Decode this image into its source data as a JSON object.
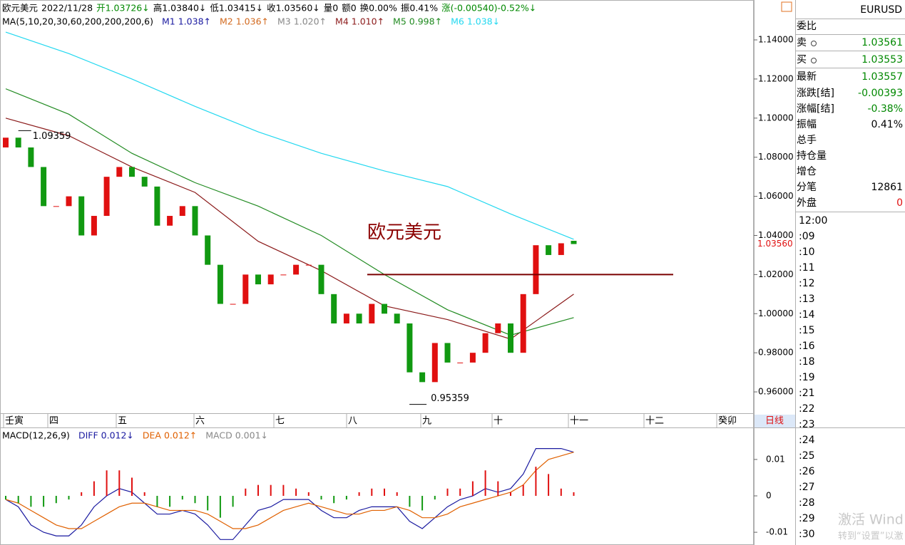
{
  "header": {
    "items": [
      {
        "text": "欧元美元",
        "color": "#000000"
      },
      {
        "text": "2022/11/28",
        "color": "#000000"
      },
      {
        "text": "开1.03726↓",
        "color": "#008800"
      },
      {
        "text": "高1.03840↓",
        "color": "#000000"
      },
      {
        "text": "低1.03415↓",
        "color": "#000000"
      },
      {
        "text": "收1.03560↓",
        "color": "#000000"
      },
      {
        "text": "量0",
        "color": "#000000"
      },
      {
        "text": "额0",
        "color": "#000000"
      },
      {
        "text": "换0.00%",
        "color": "#000000"
      },
      {
        "text": "振0.41%",
        "color": "#000000"
      },
      {
        "text": "涨(-0.00540)-0.52%↓",
        "color": "#008800"
      }
    ]
  },
  "chart_data": [
    {
      "type": "candlestick",
      "ma_title": "MA(5,10,20,30,60,200,200,200,6)",
      "open": [
        1.085,
        1.09,
        1.085,
        1.075,
        1.055,
        1.055,
        1.06,
        1.04,
        1.05,
        1.07,
        1.075,
        1.07,
        1.065,
        1.045,
        1.05,
        1.055,
        1.04,
        1.025,
        1.005,
        1.005,
        1.02,
        1.015,
        1.02,
        1.02,
        1.025,
        1.025,
        1.01,
        0.995,
        1.0,
        0.995,
        1.005,
        1.0,
        0.995,
        0.97,
        0.965,
        0.985,
        0.975,
        0.975,
        0.98,
        0.99,
        0.995,
        0.98,
        1.01,
        1.035,
        1.03,
        1.03726
      ],
      "close": [
        1.09,
        1.085,
        1.075,
        1.055,
        1.055,
        1.06,
        1.04,
        1.05,
        1.07,
        1.075,
        1.07,
        1.065,
        1.045,
        1.05,
        1.055,
        1.04,
        1.025,
        1.005,
        1.005,
        1.02,
        1.015,
        1.02,
        1.02,
        1.025,
        1.025,
        1.01,
        0.995,
        1.0,
        0.995,
        1.005,
        1.0,
        0.995,
        0.97,
        0.965,
        0.985,
        0.975,
        0.975,
        0.98,
        0.99,
        0.995,
        0.98,
        1.01,
        1.035,
        1.03,
        1.036,
        1.0356
      ],
      "up_color": "#e01010",
      "down_color": "#119911",
      "series": [
        {
          "name": "M1",
          "color": "#1a1aa0",
          "value_label": "1.038↑"
        },
        {
          "name": "M2",
          "color": "#d2691e",
          "value_label": "1.036↑"
        },
        {
          "name": "M3",
          "color": "#888888",
          "value_label": "1.020↑"
        },
        {
          "name": "M4",
          "color": "#8b1a1a",
          "value_label": "1.010↑",
          "x": [
            0,
            5,
            10,
            15,
            20,
            25,
            30,
            35,
            40,
            45
          ],
          "values": [
            1.1,
            1.091,
            1.075,
            1.062,
            1.037,
            1.022,
            1.004,
            0.997,
            0.987,
            1.01
          ]
        },
        {
          "name": "M5",
          "color": "#228b22",
          "value_label": "0.998↑",
          "x": [
            0,
            5,
            10,
            15,
            20,
            25,
            30,
            35,
            40,
            45
          ],
          "values": [
            1.115,
            1.102,
            1.082,
            1.067,
            1.055,
            1.04,
            1.02,
            1.002,
            0.989,
            0.998
          ]
        },
        {
          "name": "M6",
          "color": "#22d8f0",
          "value_label": "1.038↓",
          "x": [
            0,
            5,
            10,
            15,
            20,
            25,
            30,
            35,
            40,
            45
          ],
          "values": [
            1.144,
            1.133,
            1.12,
            1.106,
            1.093,
            1.082,
            1.073,
            1.065,
            1.051,
            1.038
          ]
        }
      ],
      "x_labels": [
        "壬寅",
        "四",
        "五",
        "六",
        "七",
        "八",
        "九",
        "十",
        "十一",
        "十二",
        "癸卯"
      ],
      "ylim": [
        0.9491,
        1.1604
      ],
      "yticks": [
        {
          "value": 1.14,
          "label": "1.14000"
        },
        {
          "value": 1.12,
          "label": "1.12000"
        },
        {
          "value": 1.1,
          "label": "1.10000"
        },
        {
          "value": 1.08,
          "label": "1.08000"
        },
        {
          "value": 1.06,
          "label": "1.06000"
        },
        {
          "value": 1.04,
          "label": "1.04000"
        },
        {
          "value": 1.02,
          "label": "1.02000"
        },
        {
          "value": 1.0,
          "label": "1.00000"
        },
        {
          "value": 0.98,
          "label": "0.98000"
        },
        {
          "value": 0.96,
          "label": "0.96000"
        }
      ],
      "last_price": {
        "value": 1.0356,
        "label": "1.03560"
      },
      "high_mark": {
        "value": 1.09359,
        "label": "1.09359"
      },
      "low_mark": {
        "value": 0.95359,
        "label": "0.95359"
      },
      "annotation": "欧元美元",
      "level_line": 1.02
    },
    {
      "type": "macd",
      "title": "MACD(12,26,9)",
      "series": [
        {
          "name": "DIFF",
          "color": "#1a1aa0",
          "value_label": "0.012↓",
          "values": [
            -0.001,
            -0.003,
            -0.008,
            -0.01,
            -0.011,
            -0.011,
            -0.008,
            -0.003,
            0.0,
            0.002,
            0.001,
            -0.002,
            -0.005,
            -0.005,
            -0.004,
            -0.005,
            -0.008,
            -0.012,
            -0.012,
            -0.008,
            -0.004,
            -0.003,
            -0.001,
            -0.001,
            -0.001,
            -0.004,
            -0.006,
            -0.006,
            -0.004,
            -0.003,
            -0.003,
            -0.003,
            -0.007,
            -0.009,
            -0.006,
            -0.003,
            -0.001,
            0.0,
            0.002,
            0.001,
            0.002,
            0.006,
            0.013,
            0.013,
            0.013,
            0.012
          ]
        },
        {
          "name": "DEA",
          "color": "#e06000",
          "value_label": "0.012↑",
          "values": [
            -0.001,
            -0.002,
            -0.004,
            -0.006,
            -0.008,
            -0.009,
            -0.009,
            -0.007,
            -0.005,
            -0.003,
            -0.002,
            -0.002,
            -0.003,
            -0.004,
            -0.004,
            -0.004,
            -0.005,
            -0.007,
            -0.009,
            -0.009,
            -0.008,
            -0.006,
            -0.004,
            -0.003,
            -0.002,
            -0.003,
            -0.004,
            -0.005,
            -0.005,
            -0.004,
            -0.004,
            -0.003,
            -0.004,
            -0.006,
            -0.006,
            -0.005,
            -0.003,
            -0.002,
            -0.001,
            0.0,
            0.001,
            0.003,
            0.007,
            0.01,
            0.011,
            0.012
          ]
        },
        {
          "name": "MACD",
          "color": "#888888",
          "value_label": "0.001↓",
          "values": [
            -0.001,
            -0.002,
            -0.003,
            -0.003,
            -0.002,
            -0.001,
            0.001,
            0.004,
            0.007,
            0.007,
            0.005,
            0.001,
            -0.003,
            -0.003,
            -0.001,
            -0.002,
            -0.004,
            -0.006,
            -0.003,
            0.002,
            0.003,
            0.003,
            0.003,
            0.002,
            0.001,
            -0.001,
            -0.002,
            -0.001,
            0.001,
            0.002,
            0.002,
            0.001,
            -0.003,
            -0.004,
            -0.001,
            0.002,
            0.002,
            0.004,
            0.007,
            0.004,
            0.001,
            0.003,
            0.008,
            0.006,
            0.002,
            0.001
          ]
        }
      ],
      "pos_color": "#e01010",
      "neg_color": "#119911",
      "ylim": [
        -0.0135,
        0.0184
      ],
      "yticks": [
        0.01,
        0,
        -0.01
      ]
    }
  ],
  "tab": "日线",
  "quote_panel": {
    "symbol": "EURUSD",
    "rows": [
      {
        "label": "委比"
      },
      {
        "label": "卖",
        "value": "1.03561",
        "color": "#008800"
      },
      {
        "label": "买",
        "value": "1.03553",
        "color": "#008800"
      },
      {
        "label": "最新",
        "value": "1.03557",
        "color": "#008800"
      },
      {
        "label": "涨跌[结]",
        "value": "-0.00393",
        "color": "#008800"
      },
      {
        "label": "涨幅[结]",
        "value": "-0.38%",
        "color": "#008800"
      },
      {
        "label": "振幅",
        "value": "0.41%",
        "color": "#000000"
      },
      {
        "label": "总手"
      },
      {
        "label": "持仓量"
      },
      {
        "label": "增仓"
      },
      {
        "label": "分笔",
        "value": "12861",
        "color": "#000000"
      },
      {
        "label": "外盘",
        "value": "0",
        "color": "#e01010"
      }
    ],
    "times": [
      "12:00",
      ":09",
      ":10",
      ":11",
      ":12",
      ":13",
      ":14",
      ":15",
      ":16",
      ":18",
      ":19",
      ":21",
      ":22",
      ":23",
      ":24",
      ":25",
      ":26",
      ":27",
      ":28",
      ":29",
      ":30"
    ]
  },
  "watermark": [
    "激活 Wind",
    "转到“设置”以激"
  ]
}
